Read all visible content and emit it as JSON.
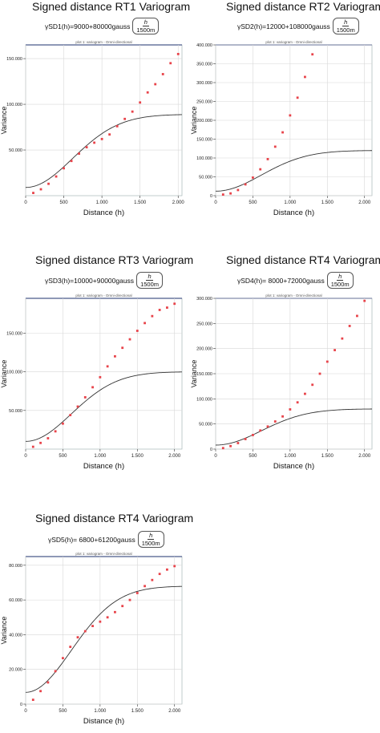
{
  "colors": {
    "model": "#333333",
    "points": "#e8434a",
    "frame": "#4a5a8a",
    "axis": "#333333"
  },
  "plot_header": "plot 1: variogram - Omni-directional",
  "chart_data": [
    {
      "type": "scatter",
      "title": "Signed distance RT1 Variogram",
      "formula_prefix": "γSD1(h)=9000+80000gauss",
      "formula_num": "h",
      "formula_den": "1500m",
      "xlabel": "Distance (h)",
      "ylabel": "Variance",
      "xlim": [
        0,
        2050
      ],
      "ylim": [
        0,
        165000
      ],
      "xticks": [
        0,
        500,
        1000,
        1500,
        2000
      ],
      "xtick_labels": [
        "0",
        "500",
        "1.000",
        "1.500",
        "2.000"
      ],
      "yticks": [
        50000,
        100000,
        150000
      ],
      "ytick_labels": [
        "50.000",
        "100.000",
        "150.000"
      ],
      "model": {
        "nugget": 9000,
        "sill": 80000,
        "range": 1500
      },
      "points": {
        "x": [
          100,
          200,
          300,
          400,
          500,
          600,
          700,
          800,
          900,
          1000,
          1100,
          1200,
          1300,
          1400,
          1500,
          1600,
          1700,
          1800,
          1900,
          2000
        ],
        "y": [
          3000,
          7000,
          13000,
          21000,
          30000,
          38000,
          46000,
          53000,
          58000,
          62000,
          67000,
          76000,
          84000,
          92000,
          102000,
          113000,
          122000,
          133000,
          145000,
          155000
        ]
      }
    },
    {
      "type": "scatter",
      "title": "Signed distance RT2 Variogram",
      "formula_prefix": "γSD2(h)=12000+108000gauss",
      "formula_num": "h",
      "formula_den": "1500m",
      "xlabel": "Distance (h)",
      "ylabel": "Variance",
      "xlim": [
        0,
        2100
      ],
      "ylim": [
        0,
        400000
      ],
      "xticks": [
        0,
        500,
        1000,
        1500,
        2000
      ],
      "xtick_labels": [
        "0",
        "500",
        "1.000",
        "1.500",
        "2.000"
      ],
      "yticks": [
        0,
        50000,
        100000,
        150000,
        200000,
        250000,
        300000,
        350000,
        400000
      ],
      "ytick_labels": [
        "0",
        "50.000",
        "100.000",
        "150.000",
        "200.000",
        "250.000",
        "300.000",
        "350.000",
        "400.000"
      ],
      "model": {
        "nugget": 12000,
        "sill": 108000,
        "range": 1500
      },
      "points": {
        "x": [
          100,
          200,
          300,
          400,
          500,
          600,
          700,
          800,
          900,
          1000,
          1100,
          1200,
          1300
        ],
        "y": [
          3000,
          6000,
          15000,
          30000,
          48000,
          70000,
          97000,
          130000,
          168000,
          213000,
          260000,
          315000,
          375000
        ]
      }
    },
    {
      "type": "scatter",
      "title": "Signed distance RT3 Variogram",
      "formula_prefix": "γSD3(h)=10000+90000gauss",
      "formula_num": "h",
      "formula_den": "1500m",
      "xlabel": "Distance (h)",
      "ylabel": "Variance",
      "xlim": [
        0,
        2100
      ],
      "ylim": [
        0,
        195000
      ],
      "xticks": [
        0,
        500,
        1000,
        1500,
        2000
      ],
      "xtick_labels": [
        "0",
        "500",
        "1.000",
        "1.500",
        "2.000"
      ],
      "yticks": [
        50000,
        100000,
        150000
      ],
      "ytick_labels": [
        "50.000",
        "100.000",
        "150.000"
      ],
      "model": {
        "nugget": 10000,
        "sill": 90000,
        "range": 1500
      },
      "points": {
        "x": [
          100,
          200,
          300,
          400,
          500,
          600,
          700,
          800,
          900,
          1000,
          1100,
          1200,
          1300,
          1400,
          1500,
          1600,
          1700,
          1800,
          1900,
          2000
        ],
        "y": [
          3000,
          8000,
          14000,
          23000,
          33000,
          44000,
          55000,
          67000,
          80000,
          93000,
          107000,
          120000,
          131000,
          142000,
          153000,
          163000,
          172000,
          180000,
          183000,
          188000
        ]
      }
    },
    {
      "type": "scatter",
      "title": "Signed distance RT4 Variogram",
      "formula_prefix": "γSD4(h)= 8000+72000gauss",
      "formula_num": "h",
      "formula_den": "1500m",
      "xlabel": "Distance (h)",
      "ylabel": "Variance",
      "xlim": [
        0,
        2100
      ],
      "ylim": [
        0,
        300000
      ],
      "xticks": [
        0,
        500,
        1000,
        1500,
        2000
      ],
      "xtick_labels": [
        "0",
        "500",
        "1.000",
        "1.500",
        "2.000"
      ],
      "yticks": [
        0,
        50000,
        100000,
        150000,
        200000,
        250000,
        300000
      ],
      "ytick_labels": [
        "0",
        "50.000",
        "100.000",
        "150.000",
        "200.000",
        "250.000",
        "300.000"
      ],
      "model": {
        "nugget": 8000,
        "sill": 72000,
        "range": 1500
      },
      "points": {
        "x": [
          100,
          200,
          300,
          400,
          500,
          600,
          700,
          800,
          900,
          1000,
          1100,
          1200,
          1300,
          1400,
          1500,
          1600,
          1700,
          1800,
          1900,
          2000
        ],
        "y": [
          2000,
          6000,
          12000,
          20000,
          28000,
          37000,
          45000,
          55000,
          65000,
          79000,
          93000,
          110000,
          128000,
          150000,
          174000,
          197000,
          220000,
          245000,
          265000,
          295000
        ]
      }
    },
    {
      "type": "scatter",
      "title": "Signed distance RT4 Variogram",
      "formula_prefix": "γSD5(h)= 6800+61200gauss",
      "formula_num": "h",
      "formula_den": "1500m",
      "xlabel": "Distance (h)",
      "ylabel": "Variance",
      "xlim": [
        0,
        2100
      ],
      "ylim": [
        0,
        85000
      ],
      "xticks": [
        0,
        500,
        1000,
        1500,
        2000
      ],
      "xtick_labels": [
        "0",
        "500",
        "1.000",
        "1.500",
        "2.000"
      ],
      "yticks": [
        0,
        20000,
        40000,
        60000,
        80000
      ],
      "ytick_labels": [
        "0",
        "20.000",
        "40.000",
        "60.000",
        "80.000"
      ],
      "model": {
        "nugget": 6800,
        "sill": 61200,
        "range": 1500
      },
      "points": {
        "x": [
          100,
          200,
          300,
          400,
          500,
          600,
          700,
          800,
          900,
          1000,
          1100,
          1200,
          1300,
          1400,
          1500,
          1600,
          1700,
          1800,
          1900,
          2000
        ],
        "y": [
          2500,
          7500,
          12500,
          19000,
          26500,
          33000,
          38500,
          42000,
          45000,
          47500,
          50000,
          53000,
          56500,
          60000,
          64000,
          68000,
          71500,
          75000,
          77500,
          79500
        ]
      }
    }
  ]
}
